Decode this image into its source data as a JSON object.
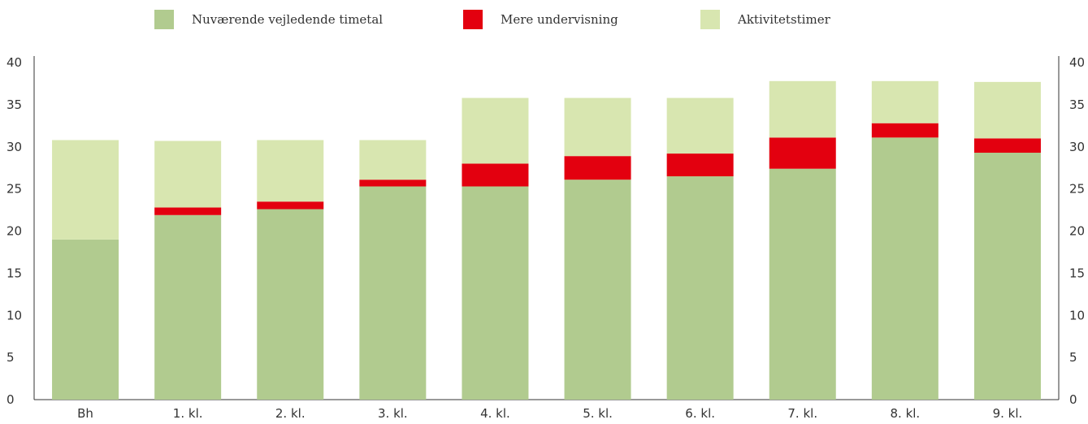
{
  "chart_data": {
    "type": "bar",
    "stacked": true,
    "title": "",
    "xlabel": "",
    "ylabel": "",
    "ylim": [
      0,
      40
    ],
    "yticks": [
      0,
      5,
      10,
      15,
      20,
      25,
      30,
      35,
      40
    ],
    "grid": false,
    "legend_position": "top",
    "categories": [
      "Bh",
      "1. kl.",
      "2. kl.",
      "3. kl.",
      "4. kl.",
      "5. kl.",
      "6. kl.",
      "7. kl.",
      "8. kl.",
      "9. kl."
    ],
    "series": [
      {
        "name": "Nuværende vejledende timetal",
        "color": "#b1cb8f",
        "values": [
          19.0,
          21.9,
          22.6,
          25.3,
          25.3,
          26.1,
          26.5,
          27.4,
          31.1,
          29.3
        ]
      },
      {
        "name": "Mere undervisning",
        "color": "#e3000f",
        "values": [
          0,
          0.9,
          0.9,
          0.8,
          2.7,
          2.8,
          2.7,
          3.7,
          1.7,
          1.7
        ]
      },
      {
        "name": "Aktivitetstimer",
        "color": "#d8e6b0",
        "values": [
          11.8,
          7.9,
          7.3,
          4.7,
          7.8,
          6.9,
          6.6,
          6.7,
          5.0,
          6.7
        ]
      }
    ]
  }
}
